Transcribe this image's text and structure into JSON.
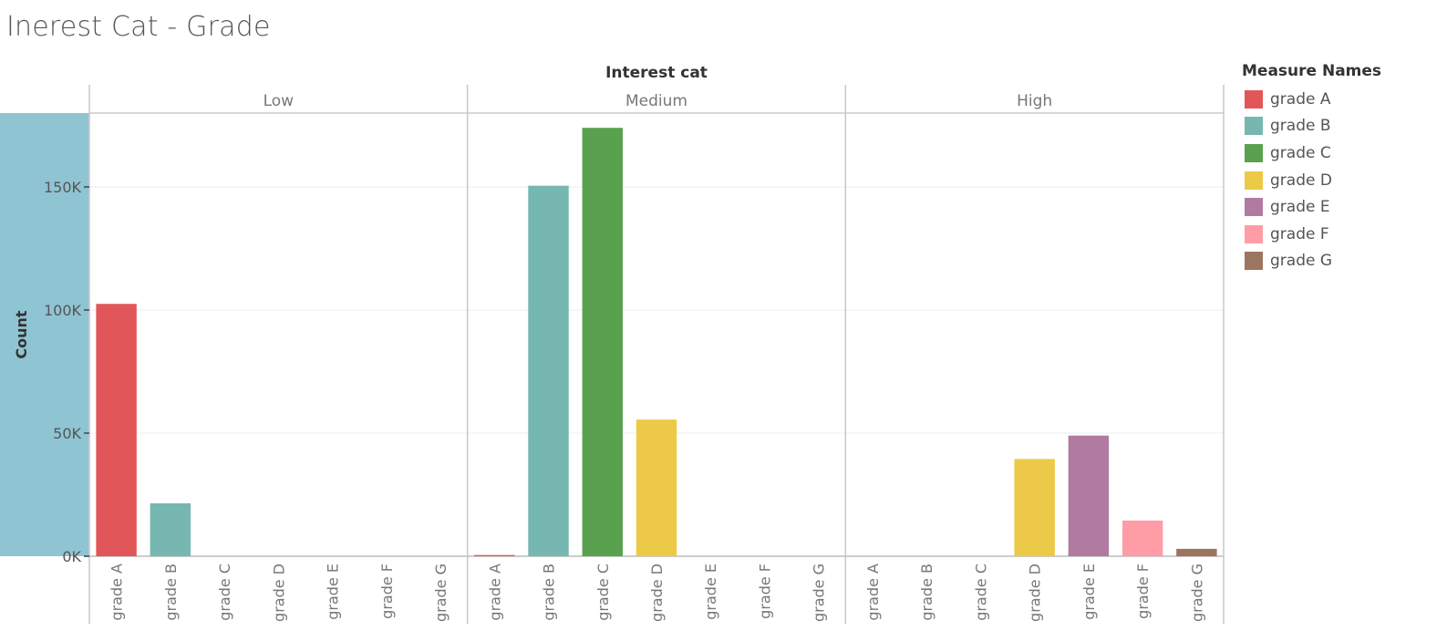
{
  "title": "Inerest Cat - Grade",
  "chart_data": {
    "type": "bar",
    "title": "Inerest Cat - Grade",
    "column_header": "Interest cat",
    "ylabel": "Count",
    "ylim": [
      0,
      180000
    ],
    "yticks": [
      0,
      50000,
      100000,
      150000
    ],
    "ytick_labels": [
      "0K",
      "50K",
      "100K",
      "150K"
    ],
    "grid": true,
    "legend": {
      "title": "Measure Names",
      "placement": "right"
    },
    "categories": [
      "grade A",
      "grade B",
      "grade C",
      "grade D",
      "grade E",
      "grade F",
      "grade G"
    ],
    "panels": [
      {
        "name": "Low",
        "values": [
          102500,
          21500,
          0,
          0,
          0,
          0,
          0
        ]
      },
      {
        "name": "Medium",
        "values": [
          500,
          150500,
          174000,
          55500,
          0,
          0,
          0
        ]
      },
      {
        "name": "High",
        "values": [
          0,
          0,
          0,
          39500,
          49000,
          14500,
          3000
        ]
      }
    ],
    "colors": {
      "grade A": "#e15759",
      "grade B": "#76b7b2",
      "grade C": "#59a14f",
      "grade D": "#edc948",
      "grade E": "#b07aa1",
      "grade F": "#ff9da7",
      "grade G": "#9c755f"
    },
    "axis_band_color": "#8fc4d3"
  }
}
